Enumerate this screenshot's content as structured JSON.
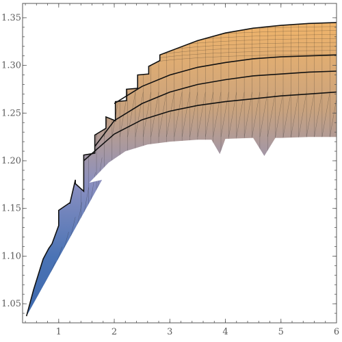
{
  "chart_data": {
    "type": "area",
    "title": "",
    "xlabel": "",
    "ylabel": "",
    "xlim": [
      0.35,
      6.0
    ],
    "ylim": [
      1.03,
      1.365
    ],
    "x_ticks": [
      {
        "value": 1,
        "label": "1"
      },
      {
        "value": 2,
        "label": "2"
      },
      {
        "value": 3,
        "label": "3"
      },
      {
        "value": 4,
        "label": "4"
      },
      {
        "value": 5,
        "label": "5"
      },
      {
        "value": 6,
        "label": "6"
      }
    ],
    "y_ticks": [
      {
        "value": 1.05,
        "label": "1.05"
      },
      {
        "value": 1.1,
        "label": "1.10"
      },
      {
        "value": 1.15,
        "label": "1.15"
      },
      {
        "value": 1.2,
        "label": "1.20"
      },
      {
        "value": 1.25,
        "label": "1.25"
      },
      {
        "value": 1.3,
        "label": "1.30"
      },
      {
        "value": 1.35,
        "label": "1.35"
      }
    ],
    "grid": false,
    "colors": {
      "blue": "#4a73b5",
      "lavender": "#8a8fc0",
      "tan": "#c8a27e",
      "orange": "#f0b46a",
      "edge": "#111111"
    },
    "upper_boundary": {
      "x": [
        0.42,
        0.55,
        0.72,
        0.82,
        0.88,
        1.0,
        1.0,
        1.2,
        1.2,
        1.3,
        1.3,
        1.45,
        1.45,
        1.65,
        1.65,
        1.85,
        1.85,
        2.02,
        2.02,
        2.22,
        2.22,
        2.42,
        2.42,
        2.62,
        2.62,
        2.82,
        2.82,
        3.0,
        3.5,
        4.0,
        4.5,
        5.0,
        5.5,
        6.0
      ],
      "y": [
        1.037,
        1.065,
        1.097,
        1.108,
        1.113,
        1.132,
        1.148,
        1.156,
        1.155,
        1.18,
        1.176,
        1.168,
        1.206,
        1.208,
        1.227,
        1.234,
        1.246,
        1.242,
        1.262,
        1.263,
        1.275,
        1.276,
        1.29,
        1.291,
        1.299,
        1.305,
        1.311,
        1.315,
        1.326,
        1.334,
        1.339,
        1.342,
        1.344,
        1.345
      ]
    },
    "lower_boundary": {
      "x": [
        0.42,
        1.78,
        1.55,
        1.9,
        2.2,
        2.6,
        3.0,
        3.5,
        3.75,
        3.9,
        4.0,
        4.5,
        4.7,
        4.9,
        5.0,
        5.5,
        6.0
      ],
      "y": [
        1.037,
        1.18,
        1.177,
        1.198,
        1.21,
        1.217,
        1.22,
        1.222,
        1.222,
        1.207,
        1.223,
        1.224,
        1.205,
        1.224,
        1.224,
        1.225,
        1.225
      ]
    },
    "band_boundaries": [
      {
        "x": [
          1.45,
          2.0,
          2.5,
          3.0,
          3.5,
          4.0,
          4.5,
          5.0,
          5.5,
          6.0
        ],
        "y": [
          1.2,
          1.228,
          1.243,
          1.252,
          1.258,
          1.262,
          1.265,
          1.268,
          1.27,
          1.272
        ]
      },
      {
        "x": [
          1.65,
          2.0,
          2.5,
          3.0,
          3.5,
          4.0,
          4.5,
          5.0,
          5.5,
          6.0
        ],
        "y": [
          1.215,
          1.242,
          1.26,
          1.272,
          1.28,
          1.285,
          1.289,
          1.291,
          1.293,
          1.294
        ]
      },
      {
        "x": [
          2.0,
          2.5,
          3.0,
          3.5,
          4.0,
          4.5,
          5.0,
          5.5,
          6.0
        ],
        "y": [
          1.26,
          1.278,
          1.29,
          1.298,
          1.303,
          1.307,
          1.309,
          1.31,
          1.311
        ]
      }
    ]
  }
}
